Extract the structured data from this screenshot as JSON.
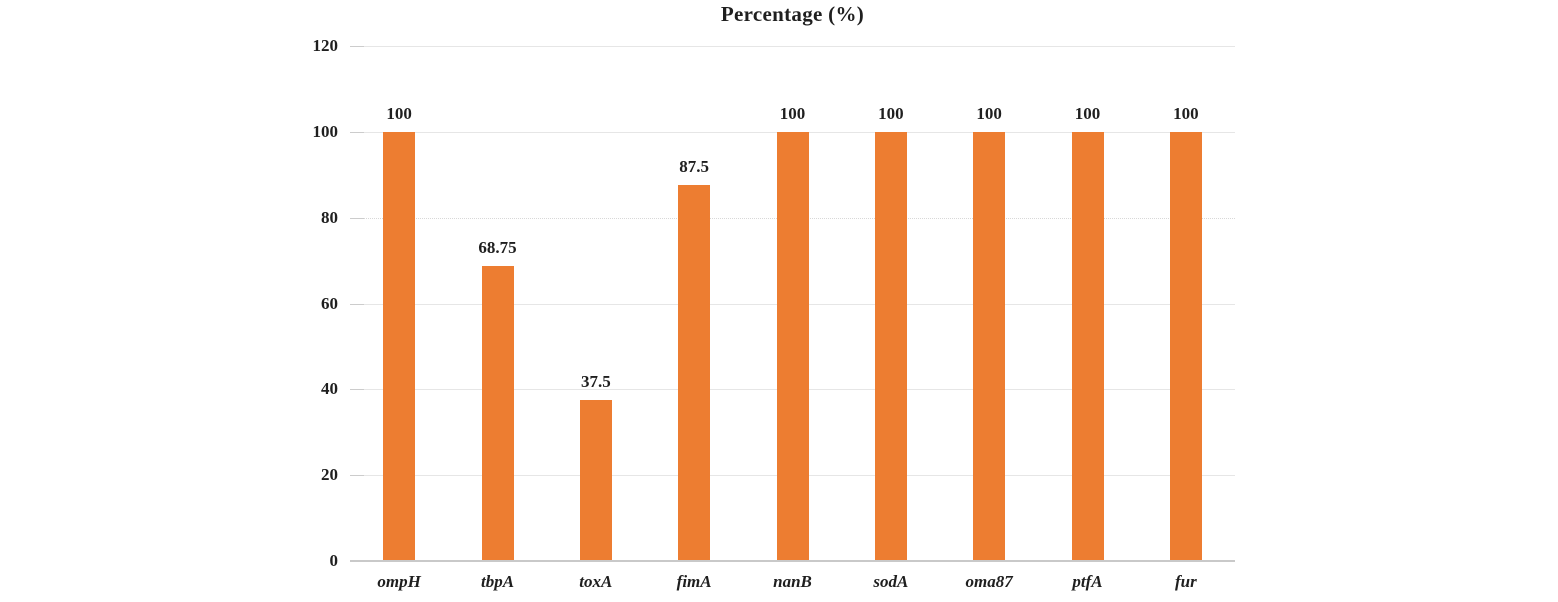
{
  "chart_data": {
    "type": "bar",
    "title": "Percentage (%)",
    "categories": [
      "ompH",
      "tbpA",
      "toxA",
      "fimA",
      "nanB",
      "sodA",
      "oma87",
      "ptfA",
      "fur"
    ],
    "values": [
      100,
      68.75,
      37.5,
      87.5,
      100,
      100,
      100,
      100,
      100
    ],
    "data_labels": [
      "100",
      "68.75",
      "37.5",
      "87.5",
      "100",
      "100",
      "100",
      "100",
      "100"
    ],
    "xlabel": "",
    "ylabel": "",
    "ylim": [
      0,
      120
    ],
    "yticks": [
      0,
      20,
      40,
      60,
      80,
      100,
      120
    ],
    "grid": "horizontal",
    "dotted_gridline_at": 80,
    "legend": "none",
    "bar_color": "#ED7D31",
    "gridline_color": "#e6e6e6",
    "axis_line_color": "#c9c9c9",
    "text_color": "#1f1f1f",
    "background_color": "#ffffff"
  }
}
